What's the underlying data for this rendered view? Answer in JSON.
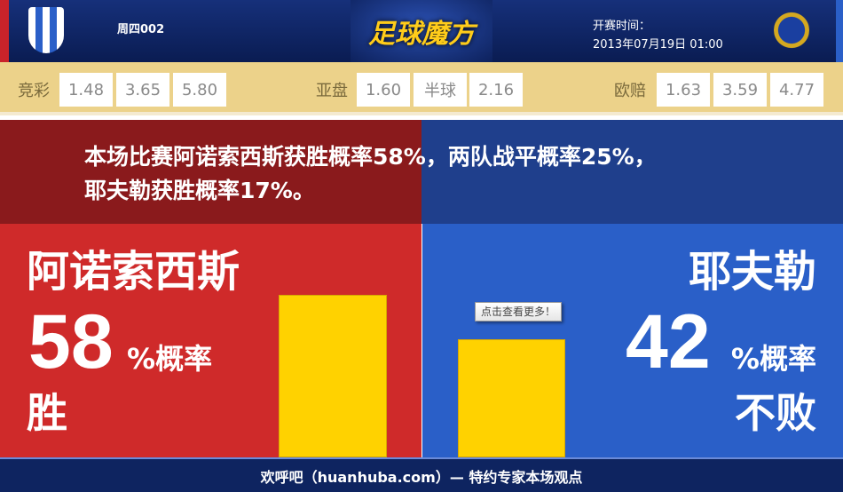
{
  "header": {
    "match_no": "周四002",
    "logo_text": "足球魔方",
    "kickoff_label": "开赛时间：",
    "kickoff_time": "2013年07月19日 01:00"
  },
  "odds": {
    "jingcai": {
      "label": "竞彩",
      "values": [
        "1.48",
        "3.65",
        "5.80"
      ]
    },
    "yapan": {
      "label": "亚盘",
      "values": [
        "1.60",
        "半球",
        "2.16"
      ]
    },
    "oupei": {
      "label": "欧赔",
      "values": [
        "1.63",
        "3.59",
        "4.77"
      ]
    }
  },
  "summary": {
    "line1": "本场比赛阿诺索西斯获胜概率58%，两队战平概率25%，",
    "line2": "耶夫勒获胜概率17%。"
  },
  "home": {
    "name": "阿诺索西斯",
    "percent": 58,
    "percent_text": "58",
    "unit": "%概率",
    "outcome": "胜",
    "color": "#cf2a2a"
  },
  "away": {
    "name": "耶夫勒",
    "percent": 42,
    "percent_text": "42",
    "unit": "%概率",
    "outcome": "不败",
    "color": "#2a5fc8"
  },
  "tooltip": "点击查看更多！",
  "footer": "欢呼吧（huanhuba.com）— 特约专家本场观点",
  "bar_color": "#ffd200"
}
